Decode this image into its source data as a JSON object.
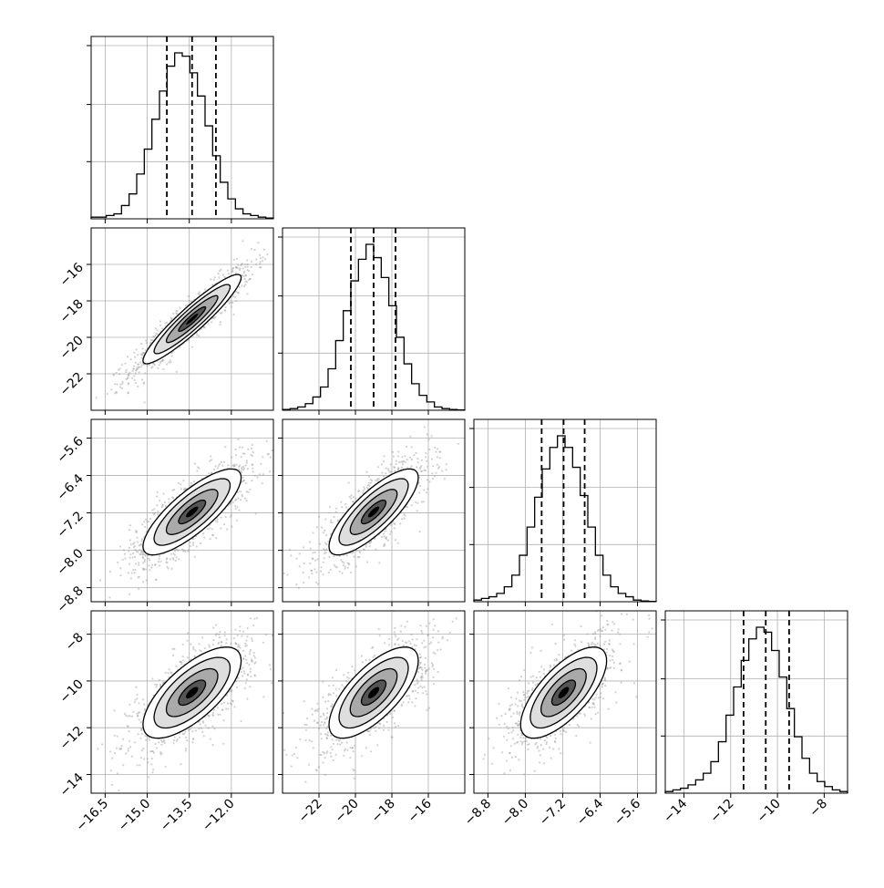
{
  "chart_data": {
    "type": "corner",
    "title": "",
    "grid": true,
    "ticks": {
      "p0": [
        "−16.5",
        "−15.0",
        "−13.5",
        "−12.0"
      ],
      "p1": [
        "−22",
        "−20",
        "−18",
        "−16"
      ],
      "p2": [
        "−8.8",
        "−8.0",
        "−7.2",
        "−6.4",
        "−5.6"
      ],
      "p3": [
        "−14",
        "−12",
        "−10",
        "−8"
      ]
    },
    "params": [
      {
        "range": [
          -17.0,
          -10.5
        ],
        "mean": -13.4,
        "quantiles": [
          -14.3,
          -13.4,
          -12.55
        ],
        "hist": [
          0.01,
          0.01,
          0.02,
          0.03,
          0.08,
          0.15,
          0.27,
          0.42,
          0.6,
          0.77,
          0.92,
          1.0,
          0.98,
          0.88,
          0.74,
          0.56,
          0.38,
          0.22,
          0.12,
          0.06,
          0.03,
          0.02,
          0.01,
          0.005
        ]
      },
      {
        "range": [
          -24.0,
          -14.0
        ],
        "mean": -19.0,
        "quantiles": [
          -20.25,
          -19.0,
          -17.8
        ],
        "hist": [
          0.005,
          0.01,
          0.02,
          0.04,
          0.08,
          0.14,
          0.25,
          0.42,
          0.6,
          0.78,
          0.91,
          1.0,
          0.92,
          0.8,
          0.63,
          0.44,
          0.28,
          0.16,
          0.09,
          0.05,
          0.02,
          0.01,
          0.005,
          0.002
        ]
      },
      {
        "range": [
          -9.1,
          -5.2
        ],
        "mean": -7.18,
        "quantiles": [
          -7.65,
          -7.18,
          -6.73
        ],
        "hist": [
          0.01,
          0.02,
          0.03,
          0.05,
          0.09,
          0.16,
          0.28,
          0.45,
          0.63,
          0.8,
          0.93,
          1.0,
          0.93,
          0.81,
          0.64,
          0.45,
          0.28,
          0.16,
          0.09,
          0.05,
          0.03,
          0.01,
          0.005,
          0.002
        ]
      },
      {
        "range": [
          -14.8,
          -7.0
        ],
        "mean": -10.5,
        "quantiles": [
          -11.45,
          -10.5,
          -9.5
        ],
        "hist": [
          0.01,
          0.02,
          0.03,
          0.05,
          0.08,
          0.12,
          0.19,
          0.31,
          0.47,
          0.64,
          0.8,
          0.93,
          1.0,
          0.97,
          0.86,
          0.7,
          0.51,
          0.34,
          0.21,
          0.12,
          0.07,
          0.04,
          0.02,
          0.01
        ]
      }
    ],
    "pairs": [
      {
        "row": 1,
        "col": 0,
        "rho": 0.93
      },
      {
        "row": 2,
        "col": 0,
        "rho": 0.8
      },
      {
        "row": 2,
        "col": 1,
        "rho": 0.8
      },
      {
        "row": 3,
        "col": 0,
        "rho": 0.7
      },
      {
        "row": 3,
        "col": 1,
        "rho": 0.7
      },
      {
        "row": 3,
        "col": 2,
        "rho": 0.7
      }
    ]
  }
}
